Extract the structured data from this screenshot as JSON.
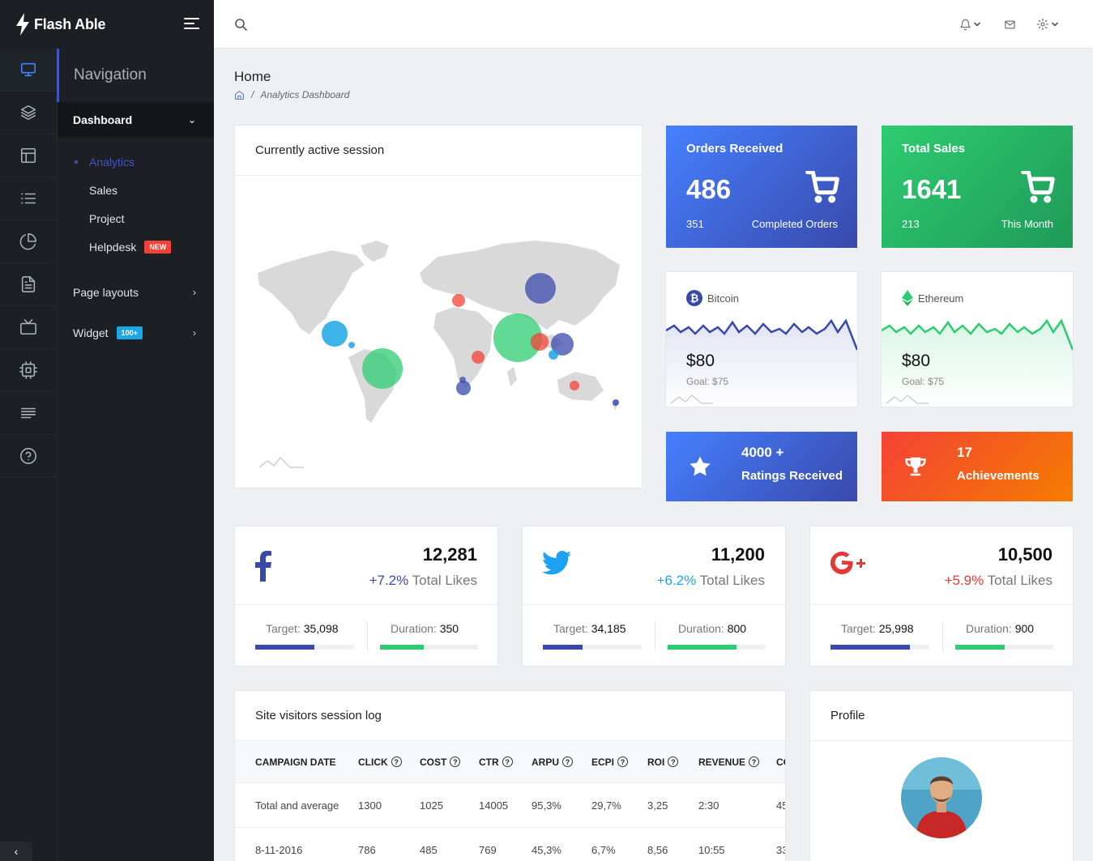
{
  "brand": {
    "name": "Flash Able"
  },
  "nav": {
    "heading": "Navigation",
    "dashboard": "Dashboard",
    "sub": [
      {
        "label": "Analytics",
        "active": true
      },
      {
        "label": "Sales"
      },
      {
        "label": "Project"
      },
      {
        "label": "Helpdesk",
        "badge": "NEW"
      }
    ],
    "page_layouts": "Page layouts",
    "widget": "Widget",
    "widget_badge": "100+"
  },
  "rail_icons": [
    "monitor-icon",
    "layers-icon",
    "layout-icon",
    "list-icon",
    "pie-chart-icon",
    "file-text-icon",
    "tv-icon",
    "cpu-icon",
    "align-left-icon",
    "help-circle-icon"
  ],
  "header": {
    "icons": [
      "search-icon",
      "bell-icon",
      "mail-icon",
      "settings-icon"
    ]
  },
  "page": {
    "title": "Home",
    "breadcrumb": "Analytics Dashboard"
  },
  "session": {
    "title": "Currently active session"
  },
  "orders": {
    "title": "Orders Received",
    "value": "486",
    "small": "351",
    "label": "Completed Orders",
    "colors": [
      "#4680ff",
      "#3949ab"
    ]
  },
  "sales": {
    "title": "Total Sales",
    "value": "1641",
    "small": "213",
    "label": "This Month",
    "colors": [
      "#2ed8b6",
      "#1de9b6"
    ]
  },
  "bitcoin": {
    "name": "Bitcoin",
    "price": "$80",
    "goal": "Goal: $75",
    "color": "#3949ab"
  },
  "ethereum": {
    "name": "Ethereum",
    "price": "$80",
    "goal": "Goal: $75",
    "color": "#2ecc71"
  },
  "ratings": {
    "line1": "4000 +",
    "line2": "Ratings Received"
  },
  "achievements": {
    "line1": "17",
    "line2": "Achievements"
  },
  "social": [
    {
      "network": "facebook",
      "value": "12,281",
      "pct": "+7.2%",
      "pct_label": " Total Likes",
      "target_label": "Target:",
      "target": "35,098",
      "duration_label": "Duration:",
      "duration": "350",
      "pct_color": "#3949ab",
      "target_progress": 60,
      "duration_progress": 45
    },
    {
      "network": "twitter",
      "value": "11,200",
      "pct": "+6.2%",
      "pct_label": " Total Likes",
      "target_label": "Target:",
      "target": "34,185",
      "duration_label": "Duration:",
      "duration": "800",
      "pct_color": "#1da1f2",
      "target_progress": 40,
      "duration_progress": 70
    },
    {
      "network": "google-plus",
      "value": "10,500",
      "pct": "+5.9%",
      "pct_label": " Total Likes",
      "target_label": "Target:",
      "target": "25,998",
      "duration_label": "Duration:",
      "duration": "900",
      "pct_color": "#e53935",
      "target_progress": 80,
      "duration_progress": 50
    }
  ],
  "log": {
    "title": "Site visitors session log",
    "headers": [
      "CAMPAIGN DATE",
      "CLICK",
      "COST",
      "CTR",
      "ARPU",
      "ECPI",
      "ROI",
      "REVENUE",
      "CO"
    ],
    "rows": [
      [
        "Total and average",
        "1300",
        "1025",
        "14005",
        "95,3%",
        "29,7%",
        "3,25",
        "2:30",
        "45"
      ],
      [
        "8-11-2016",
        "786",
        "485",
        "769",
        "45,3%",
        "6,7%",
        "8,56",
        "10:55",
        "33"
      ]
    ]
  },
  "profile": {
    "title": "Profile"
  }
}
